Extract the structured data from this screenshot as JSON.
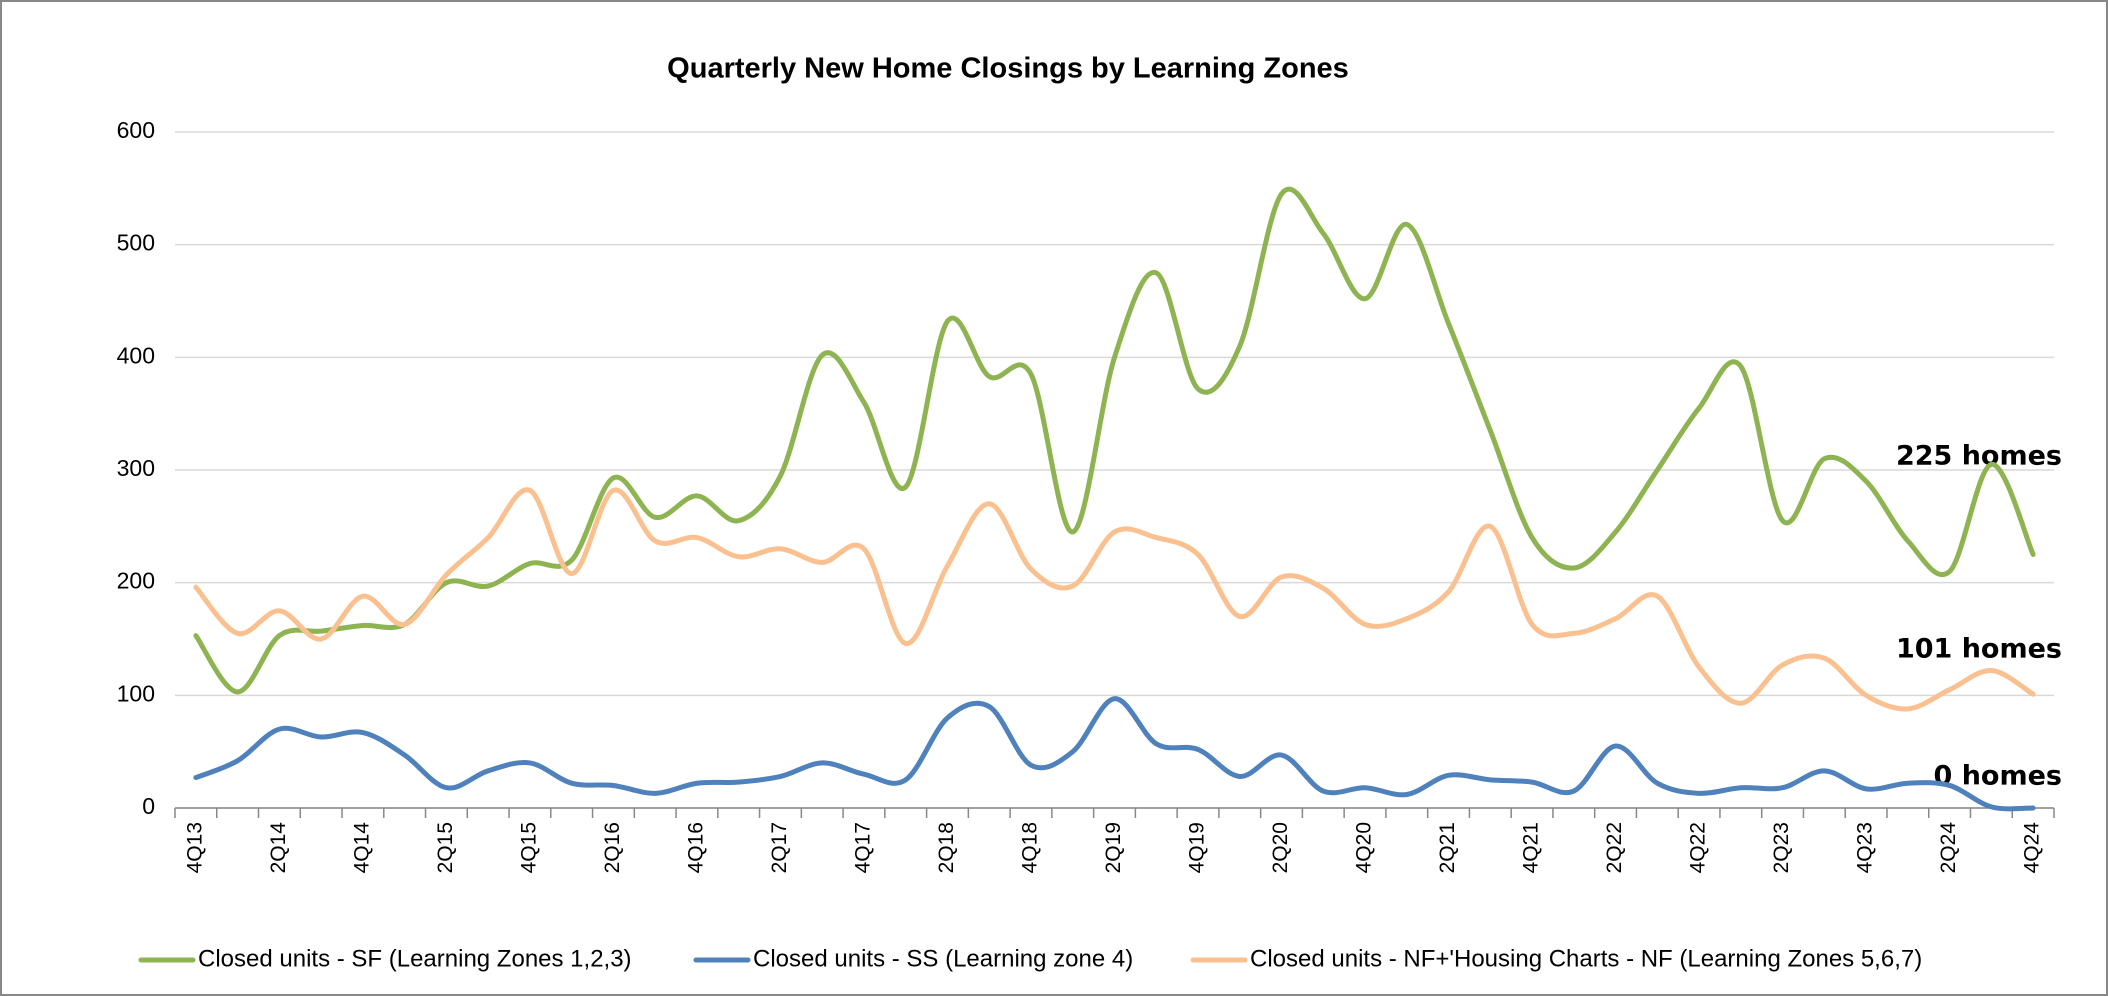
{
  "chart_data": {
    "type": "line",
    "title": "Quarterly New Home Closings by Learning Zones",
    "categories": [
      "4Q13",
      null,
      "2Q14",
      null,
      "4Q14",
      null,
      "2Q15",
      null,
      "4Q15",
      null,
      "2Q16",
      null,
      "4Q16",
      null,
      "2Q17",
      null,
      "4Q17",
      null,
      "2Q18",
      null,
      "4Q18",
      null,
      "2Q19",
      null,
      "4Q19",
      null,
      "2Q20",
      null,
      "4Q20",
      null,
      "2Q21",
      null,
      "4Q21",
      null,
      "2Q22",
      null,
      "4Q22",
      null,
      "2Q23",
      null,
      "4Q23",
      null,
      "2Q24",
      null,
      "4Q24"
    ],
    "series": [
      {
        "name": "Closed units - SF (Learning Zones 1,2,3)",
        "color": "#8db451",
        "values": [
          153,
          103,
          153,
          157,
          162,
          163,
          200,
          197,
          217,
          220,
          293,
          258,
          277,
          255,
          295,
          402,
          360,
          285,
          432,
          383,
          385,
          245,
          400,
          475,
          372,
          410,
          545,
          510,
          452,
          518,
          430,
          335,
          240,
          213,
          245,
          300,
          355,
          392,
          255,
          310,
          290,
          237,
          210,
          305,
          225
        ]
      },
      {
        "name": "Closed units - SS (Learning zone 4)",
        "color": "#4f81bd",
        "values": [
          27,
          42,
          70,
          63,
          67,
          47,
          18,
          33,
          40,
          22,
          20,
          13,
          22,
          23,
          28,
          40,
          30,
          25,
          80,
          90,
          38,
          50,
          97,
          57,
          52,
          28,
          47,
          15,
          18,
          12,
          29,
          25,
          23,
          15,
          55,
          22,
          13,
          18,
          18,
          33,
          17,
          22,
          20,
          1,
          0
        ]
      },
      {
        "name": "Closed units - NF+'Housing Charts - NF (Learning Zones 5,6,7)",
        "color": "#fac08f",
        "values": [
          196,
          155,
          175,
          150,
          188,
          163,
          207,
          240,
          282,
          208,
          282,
          237,
          240,
          223,
          230,
          218,
          230,
          146,
          215,
          270,
          212,
          197,
          245,
          240,
          225,
          170,
          205,
          195,
          163,
          168,
          192,
          250,
          163,
          155,
          168,
          188,
          125,
          93,
          127,
          133,
          100,
          88,
          105,
          122,
          101
        ]
      }
    ],
    "annotations": [
      "225 homes",
      "101 homes",
      "0 homes"
    ],
    "ylim": [
      0,
      600
    ],
    "yticks": [
      0,
      100,
      200,
      300,
      400,
      500,
      600
    ],
    "grid": true,
    "legend": "bottom"
  }
}
